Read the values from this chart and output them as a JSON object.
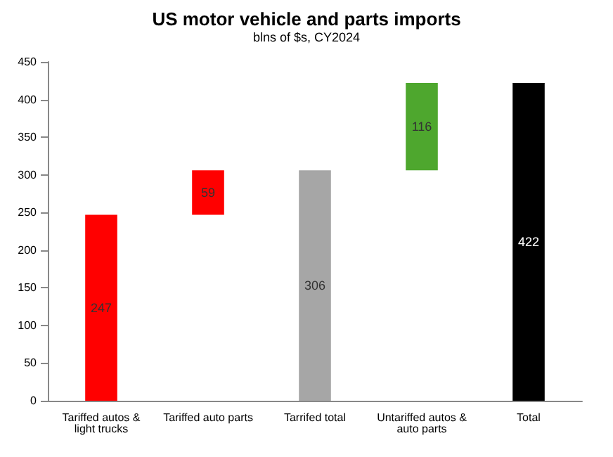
{
  "chart_data": {
    "type": "bar",
    "title": "US motor vehicle and parts imports",
    "subtitle": "blns of $s, CY2024",
    "categories": [
      "Tariffed autos & light trucks",
      "Tariffed auto parts",
      "Tarrifed total",
      "Untariffed autos & auto parts",
      "Total"
    ],
    "values": [
      247,
      59,
      306,
      116,
      422
    ],
    "base": [
      0,
      247,
      0,
      306,
      0
    ],
    "colors": [
      "#ff0000",
      "#ff0000",
      "#a6a6a6",
      "#4ea72e",
      "#000000"
    ],
    "data_labels": true,
    "ylim": [
      0,
      450
    ],
    "yticks": [
      0,
      50,
      100,
      150,
      200,
      250,
      300,
      350,
      400,
      450
    ],
    "grid": false
  }
}
